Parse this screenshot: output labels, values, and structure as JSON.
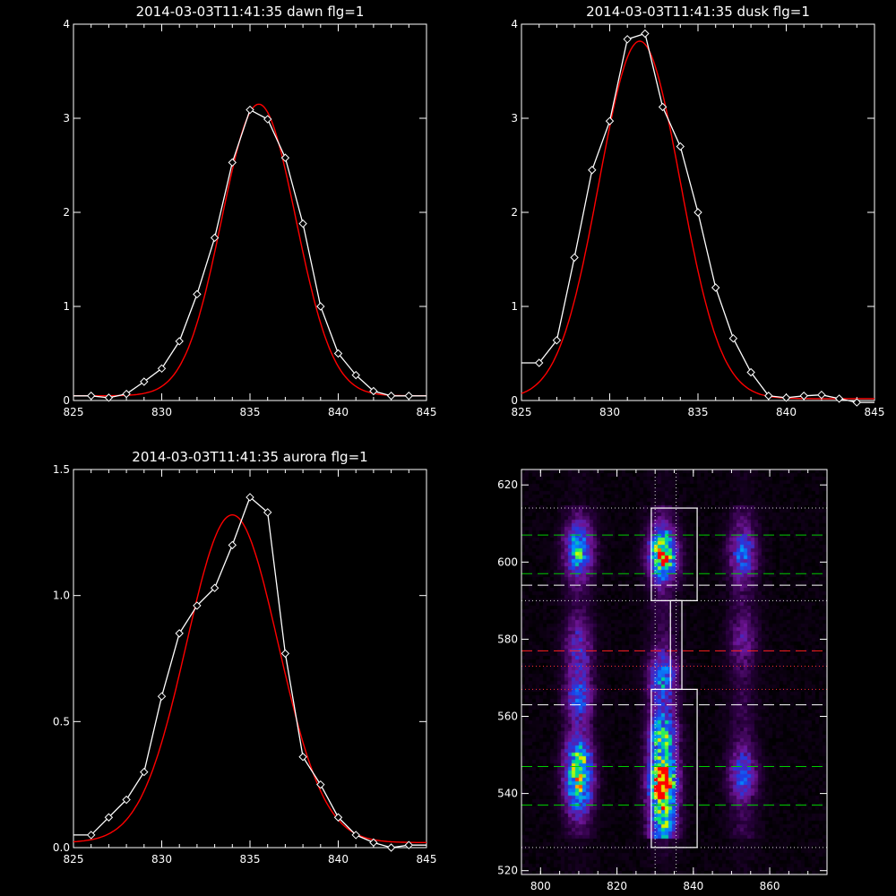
{
  "colors": {
    "background": "#000000",
    "axes": "#ffffff",
    "measured": "#ffffff",
    "fit": "#ff0000",
    "dashed_green": "#00cc00",
    "dashed_red": "#ff2020",
    "dotted_red": "#ff3030",
    "dashed_white": "#ffffff",
    "dotted_white": "#dddddd"
  },
  "chart_data": [
    {
      "id": "dawn",
      "type": "line",
      "title": "2014-03-03T11:41:35 dawn flg=1",
      "xlim": [
        825,
        845
      ],
      "ylim": [
        0,
        4
      ],
      "xticks": [
        825,
        830,
        835,
        840,
        845
      ],
      "yticks": [
        0,
        1,
        2,
        3,
        4
      ],
      "x": [
        826,
        827,
        828,
        829,
        830,
        831,
        832,
        833,
        834,
        835,
        836,
        837,
        838,
        839,
        840,
        841,
        842,
        843,
        844
      ],
      "series": [
        {
          "role": "measured",
          "marker": "diamond",
          "values": [
            0.05,
            0.03,
            0.07,
            0.2,
            0.34,
            0.63,
            1.13,
            1.73,
            2.53,
            3.09,
            2.99,
            2.58,
            1.88,
            1.0,
            0.5,
            0.27,
            0.1,
            0.05,
            0.05
          ]
        },
        {
          "role": "fit",
          "center": 835.5,
          "amplitude": 3.1,
          "sigma": 2.1,
          "baseline": 0.05
        }
      ]
    },
    {
      "id": "dusk",
      "type": "line",
      "title": "2014-03-03T11:41:35 dusk flg=1",
      "xlim": [
        825,
        845
      ],
      "ylim": [
        0,
        4
      ],
      "xticks": [
        825,
        830,
        835,
        840,
        845
      ],
      "yticks": [
        0,
        1,
        2,
        3,
        4
      ],
      "x": [
        826,
        827,
        828,
        829,
        830,
        831,
        832,
        833,
        834,
        835,
        836,
        837,
        838,
        839,
        840,
        841,
        842,
        843,
        844
      ],
      "series": [
        {
          "role": "measured",
          "marker": "diamond",
          "values": [
            0.4,
            0.64,
            1.52,
            2.45,
            2.97,
            3.84,
            3.9,
            3.12,
            2.7,
            2.0,
            1.2,
            0.66,
            0.3,
            0.05,
            0.03,
            0.05,
            0.06,
            0.02,
            -0.02
          ]
        },
        {
          "role": "fit",
          "center": 831.7,
          "amplitude": 3.8,
          "sigma": 2.3,
          "baseline": 0.02
        }
      ]
    },
    {
      "id": "aurora",
      "type": "line",
      "title": "2014-03-03T11:41:35 aurora flg=1",
      "xlim": [
        825,
        845
      ],
      "ylim": [
        0,
        1.5
      ],
      "xticks": [
        825,
        830,
        835,
        840,
        845
      ],
      "yticks": [
        "0.0",
        "0.5",
        "1.0",
        "1.5"
      ],
      "x": [
        826,
        827,
        828,
        829,
        830,
        831,
        832,
        833,
        834,
        835,
        836,
        837,
        838,
        839,
        840,
        841,
        842,
        843,
        844
      ],
      "series": [
        {
          "role": "measured",
          "marker": "diamond",
          "values": [
            0.05,
            0.12,
            0.19,
            0.3,
            0.6,
            0.85,
            0.96,
            1.03,
            1.2,
            1.39,
            1.33,
            0.77,
            0.36,
            0.25,
            0.12,
            0.05,
            0.02,
            0.0,
            0.01
          ]
        },
        {
          "role": "fit",
          "center": 834.0,
          "amplitude": 1.3,
          "sigma": 2.6,
          "baseline": 0.02
        }
      ]
    },
    {
      "id": "spectrogram",
      "type": "heatmap",
      "xlim": [
        795,
        875
      ],
      "ylim": [
        519,
        624
      ],
      "xticks": [
        800,
        820,
        840,
        860
      ],
      "yticks": [
        520,
        540,
        560,
        580,
        600,
        620
      ],
      "colormap": "black-purple-blue-green-yellow-red",
      "bands": [
        {
          "x": 810,
          "peaks": [
            [
              603,
              0.55
            ],
            [
              548,
              0.6
            ],
            [
              540,
              0.45
            ],
            [
              578,
              0.25
            ],
            [
              565,
              0.35
            ]
          ]
        },
        {
          "x": 832,
          "peaks": [
            [
              602,
              0.85
            ],
            [
              570,
              0.45
            ],
            [
              555,
              0.6
            ],
            [
              543,
              1.0
            ],
            [
              532,
              0.55
            ]
          ]
        },
        {
          "x": 853,
          "peaks": [
            [
              602,
              0.35
            ],
            [
              545,
              0.35
            ],
            [
              580,
              0.15
            ]
          ]
        }
      ],
      "boxes": [
        {
          "x": [
            829,
            841
          ],
          "y": [
            590,
            614
          ]
        },
        {
          "x": [
            829,
            841
          ],
          "y": [
            526,
            567
          ]
        },
        {
          "x": [
            834,
            837
          ],
          "y": [
            567,
            590
          ]
        }
      ],
      "hlines": [
        {
          "y": 614,
          "style": "dotted",
          "color": "dotted_white"
        },
        {
          "y": 607,
          "style": "dashed",
          "color": "dashed_green"
        },
        {
          "y": 597,
          "style": "dashed",
          "color": "dashed_green"
        },
        {
          "y": 594,
          "style": "dashed",
          "color": "dashed_white"
        },
        {
          "y": 590,
          "style": "dotted",
          "color": "dotted_white"
        },
        {
          "y": 577,
          "style": "dashed",
          "color": "dashed_red"
        },
        {
          "y": 573,
          "style": "dotted",
          "color": "dotted_red"
        },
        {
          "y": 567,
          "style": "dotted",
          "color": "dotted_red"
        },
        {
          "y": 563,
          "style": "dashed",
          "color": "dashed_white"
        },
        {
          "y": 547,
          "style": "dashed",
          "color": "dashed_green"
        },
        {
          "y": 537,
          "style": "dashed",
          "color": "dashed_green"
        },
        {
          "y": 526,
          "style": "dotted",
          "color": "dotted_white"
        }
      ],
      "vlines": [
        {
          "x": 830,
          "style": "dotted",
          "color": "dotted_white"
        },
        {
          "x": 835.5,
          "style": "dotted",
          "color": "dotted_white"
        }
      ]
    }
  ]
}
